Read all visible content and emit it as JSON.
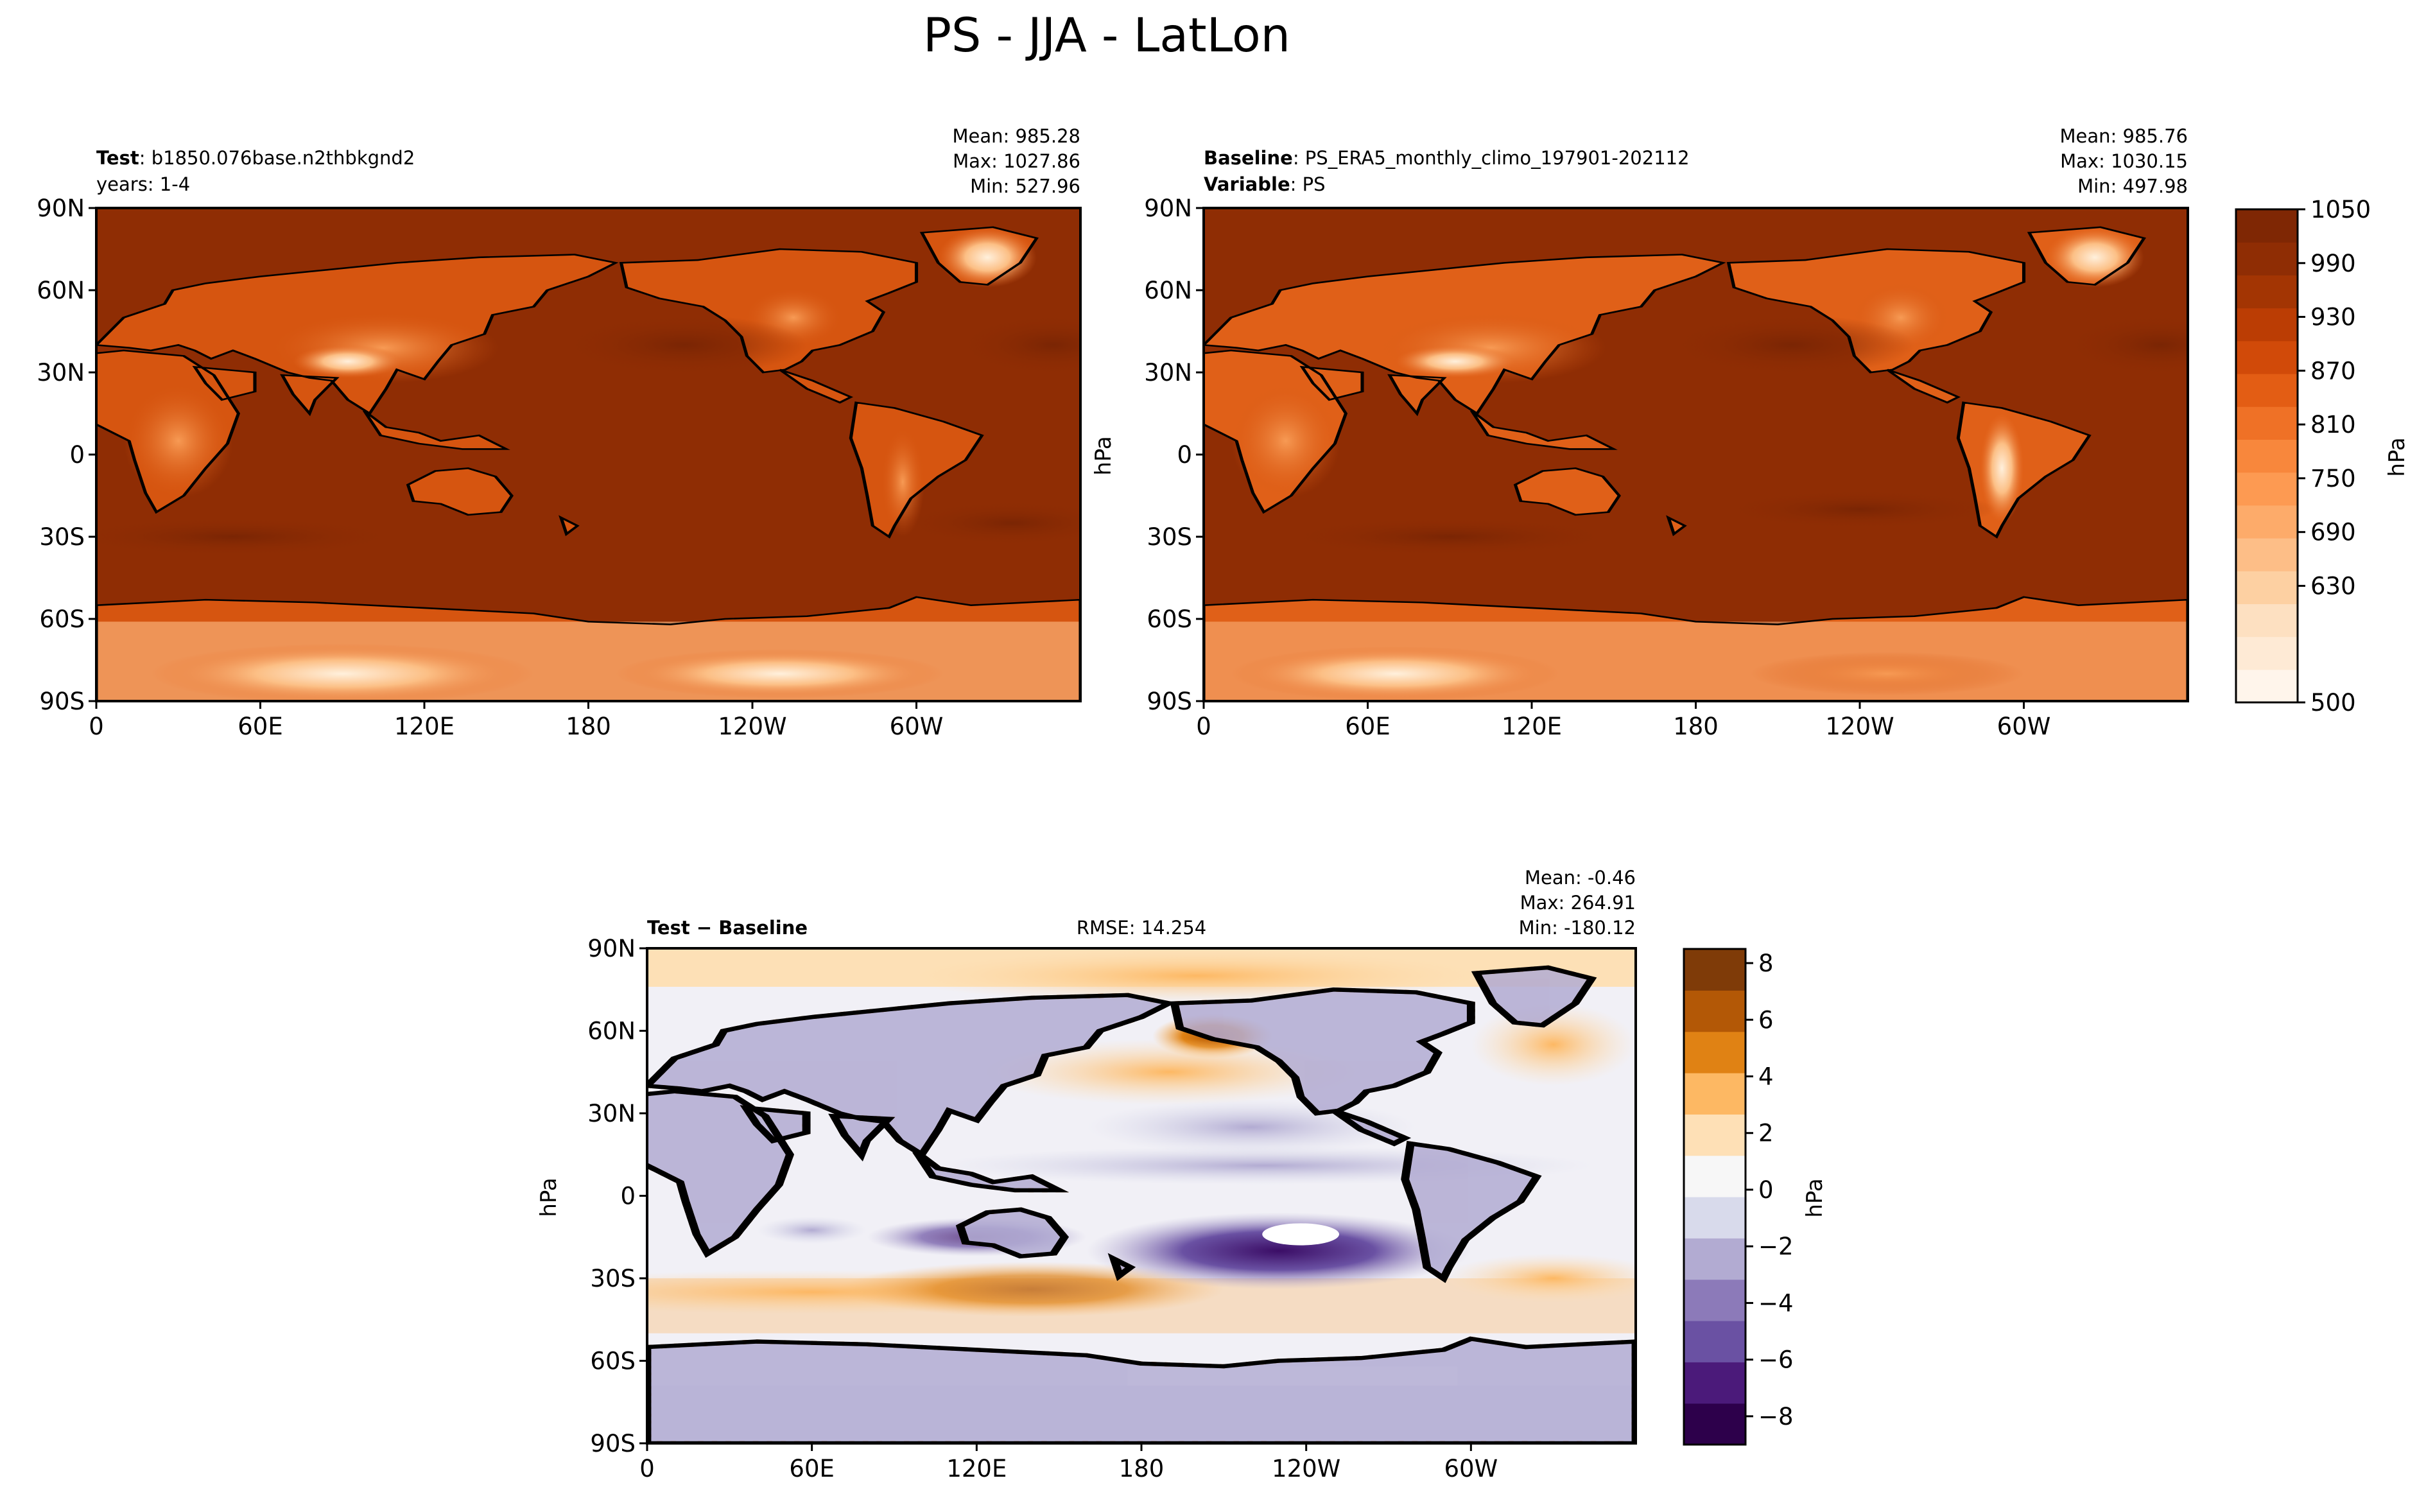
{
  "figure": {
    "title": "PS - JJA - LatLon"
  },
  "colors": {
    "oranges_scale": [
      "#fff5eb",
      "#feead5",
      "#fde0c1",
      "#fdd0a2",
      "#fdbe87",
      "#fdab6a",
      "#fd9a52",
      "#f8873c",
      "#ef7126",
      "#e35d14",
      "#d14a09",
      "#bb3d04",
      "#a33503",
      "#8f2d04",
      "#7f2704"
    ],
    "puor_scale": [
      "#2d004b",
      "#4b1a7a",
      "#6a51a3",
      "#8c7ab9",
      "#b2abd2",
      "#d8daeb",
      "#f7f7f7",
      "#fee0b6",
      "#fdb863",
      "#e08214",
      "#b35806",
      "#7f3b08"
    ],
    "land_outline": "#000000",
    "contour_line": "#b35806"
  },
  "chart_data": [
    {
      "type": "heatmap",
      "panel": "test",
      "label_bold": "Test",
      "label_rest": ": b1850.076base.n2thbkgnd2",
      "label_line2": "years: 1-4",
      "stats": {
        "mean": "Mean: 985.28",
        "max": "Max: 1027.86",
        "min": "Min: 527.96"
      },
      "x_ticks": [
        "0",
        "60E",
        "120E",
        "180",
        "120W",
        "60W"
      ],
      "y_ticks": [
        "90N",
        "60N",
        "30N",
        "0",
        "30S",
        "60S",
        "90S"
      ],
      "xlim": [
        0,
        360
      ],
      "ylim": [
        -90,
        90
      ]
    },
    {
      "type": "heatmap",
      "panel": "baseline",
      "label_bold": "Baseline",
      "label_rest": ": PS_ERA5_monthly_climo_197901-202112",
      "label2_bold": "Variable",
      "label2_rest": ": PS",
      "stats": {
        "mean": "Mean: 985.76",
        "max": "Max: 1030.15",
        "min": "Min: 497.98"
      },
      "ylabel": "hPa",
      "x_ticks": [
        "0",
        "60E",
        "120E",
        "180",
        "120W",
        "60W"
      ],
      "y_ticks": [
        "90N",
        "60N",
        "30N",
        "0",
        "30S",
        "60S",
        "90S"
      ],
      "xlim": [
        0,
        360
      ],
      "ylim": [
        -90,
        90
      ],
      "colorbar": {
        "label": "hPa",
        "range": [
          500,
          1050
        ],
        "ticks": [
          "1050",
          "990",
          "930",
          "870",
          "810",
          "750",
          "690",
          "630",
          "500"
        ]
      }
    },
    {
      "type": "heatmap",
      "panel": "difference",
      "label": "Test − Baseline",
      "rmse": "RMSE: 14.254",
      "stats": {
        "mean": "Mean: -0.46",
        "max": "Max: 264.91",
        "min": "Min: -180.12"
      },
      "ylabel": "hPa",
      "x_ticks": [
        "0",
        "60E",
        "120E",
        "180",
        "120W",
        "60W"
      ],
      "y_ticks": [
        "90N",
        "60N",
        "30N",
        "0",
        "30S",
        "60S",
        "90S"
      ],
      "xlim": [
        0,
        360
      ],
      "ylim": [
        -90,
        90
      ],
      "colorbar": {
        "label": "hPa",
        "range": [
          -9,
          8.5
        ],
        "ticks": [
          "8",
          "6",
          "4",
          "2",
          "0",
          "−2",
          "−4",
          "−6",
          "−8"
        ]
      }
    }
  ]
}
